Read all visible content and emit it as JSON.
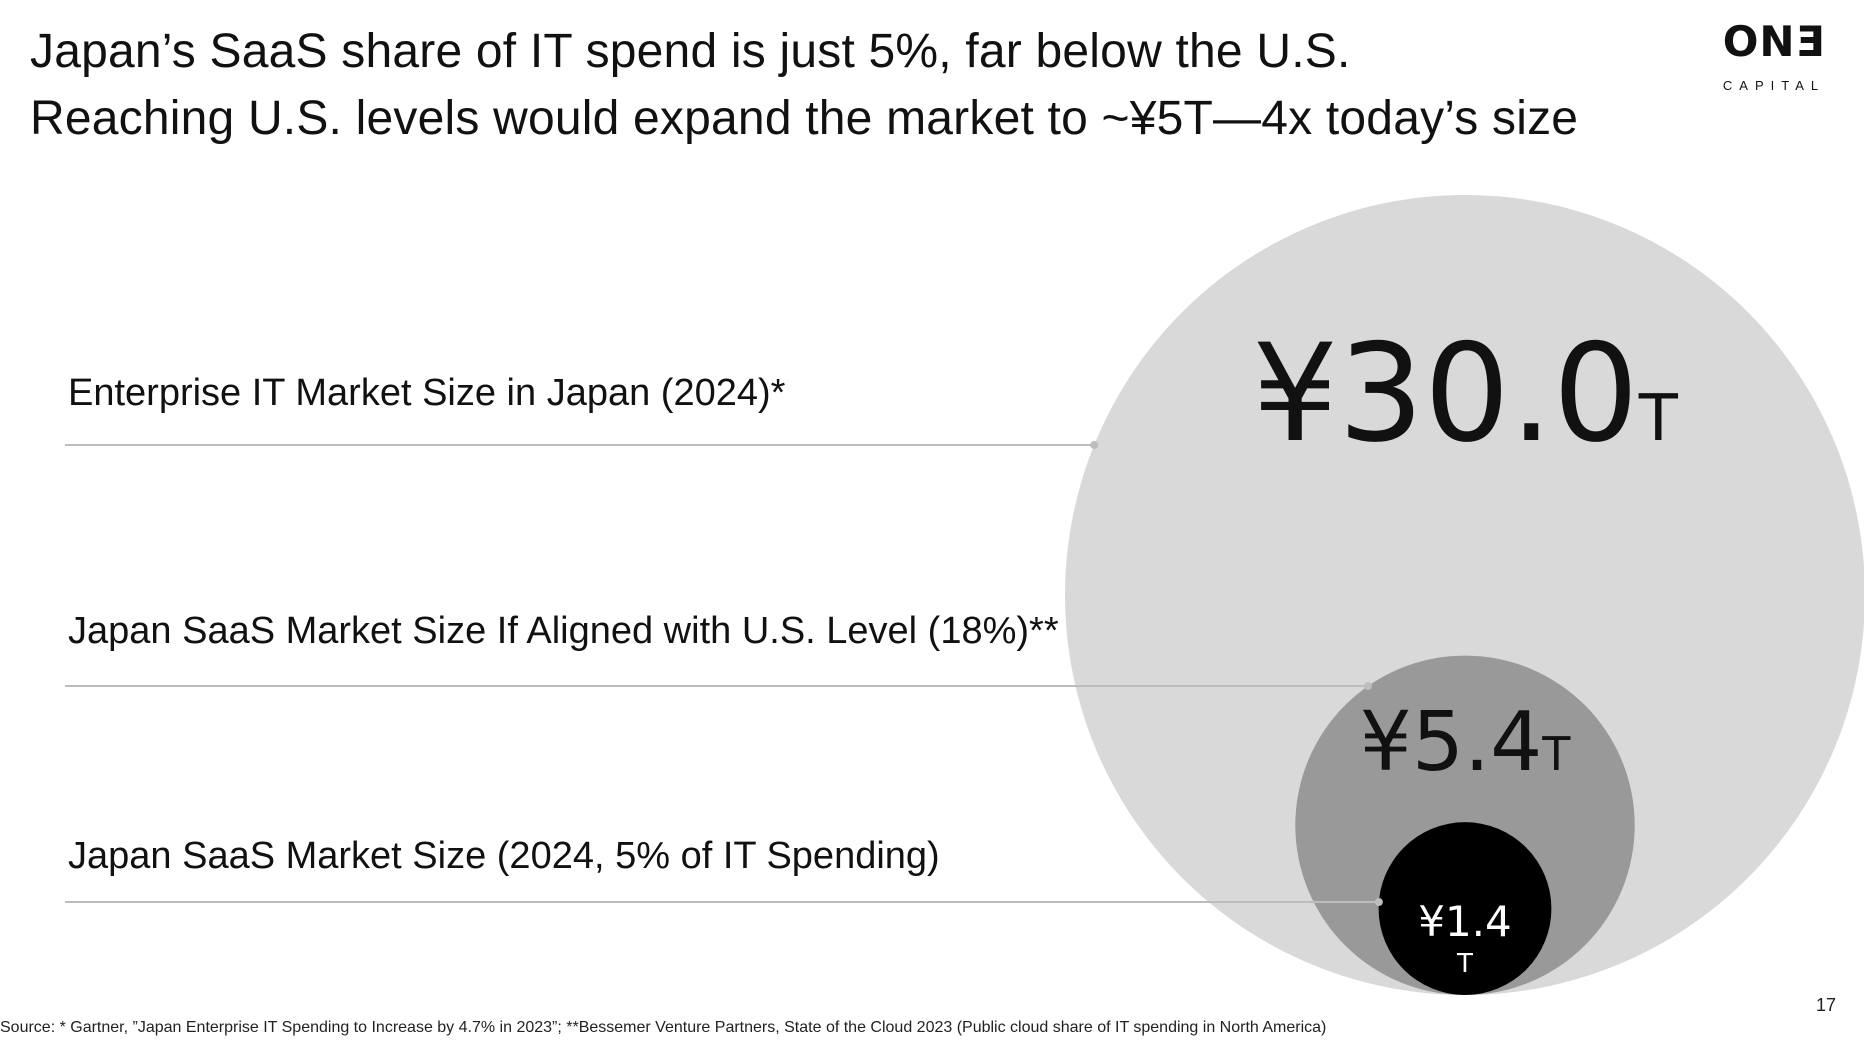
{
  "slide": {
    "title_line1": "Japan’s SaaS share of IT spend is just 5%, far below the U.S.",
    "title_line2": "Reaching U.S. levels would expand the market to ~¥5T—4x today’s size",
    "page_number": "17",
    "source": "Source: * Gartner, ”Japan Enterprise IT Spending to Increase by 4.7% in 2023”; **Bessemer Venture Partners, State of the Cloud 2023 (Public cloud share of IT spending in North America)"
  },
  "logo": {
    "mark": "ONƎ",
    "subtitle": "CAPITAL"
  },
  "chart_data": {
    "type": "bubble",
    "title": "",
    "unit": "¥ trillion",
    "bubbles": [
      {
        "label": "Enterprise IT Market Size in Japan (2024)*",
        "value": 30.0,
        "value_text": "¥30.0",
        "unit_text": "T",
        "fill": "#d9d9d9",
        "text_color": "#111111"
      },
      {
        "label": "Japan SaaS Market Size If Aligned with U.S. Level (18%)**",
        "value": 5.4,
        "value_text": "¥5.4",
        "unit_text": "T",
        "fill": "#999999",
        "text_color": "#111111"
      },
      {
        "label": "Japan SaaS Market Size (2024, 5% of IT Spending)",
        "value": 1.4,
        "value_text": "¥1.4",
        "unit_text": "T",
        "fill": "#000000",
        "text_color": "#ffffff"
      }
    ],
    "leader_color": "#bdbdbd"
  }
}
